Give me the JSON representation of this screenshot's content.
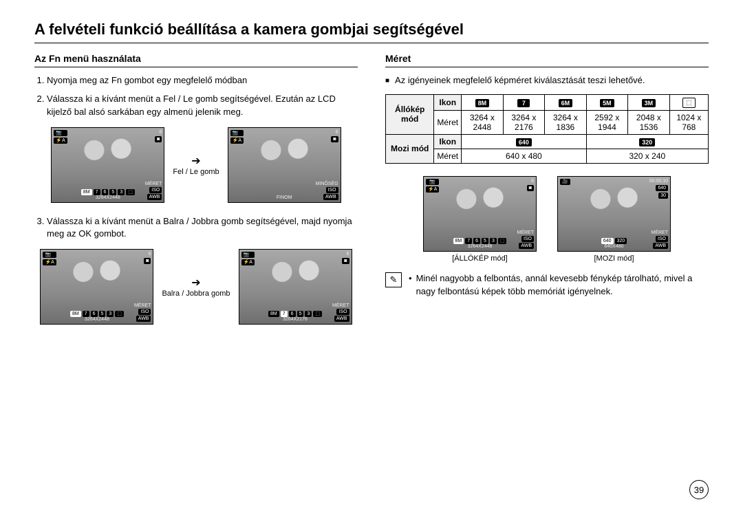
{
  "page_title": "A felvételi funkció beállítása a kamera gombjai segítségével",
  "page_number": "39",
  "left": {
    "header": "Az Fn menü használata",
    "steps": [
      "Nyomja meg az Fn gombot egy megfelelő módban",
      "Válassza ki a kívánt menüt a Fel / Le gomb segítségével. Ezután az LCD kijelző bal alsó sarkában egy almenü jelenik meg.",
      "Válassza ki a kívánt menüt a Balra / Jobbra gomb segítségével, majd nyomja meg az OK gombot."
    ],
    "between1_label": "Fel / Le gomb",
    "between2_label": "Balra / Jobbra gomb",
    "lcd_common": {
      "top_left_icons": [
        "📷",
        "⚡A"
      ],
      "top_right_count": "6",
      "top_right_icon": "◙",
      "bottom_right": [
        "ISO",
        "AUTO",
        "AWB"
      ],
      "bottom_row_chips": [
        "8M",
        "7",
        "6",
        "5",
        "3",
        "⬚"
      ]
    },
    "lcd1": {
      "menu_label": "MÉRET",
      "bottom_value": "3264X2448"
    },
    "lcd2": {
      "menu_label": "MINŐSÉG",
      "bottom_value": "FINOM"
    },
    "lcd3": {
      "menu_label": "MÉRET",
      "bottom_value": "3264X2448"
    },
    "lcd4": {
      "menu_label": "MÉRET",
      "bottom_value": "3264X2176"
    }
  },
  "right": {
    "header": "Méret",
    "intro": "Az igényeinek megfelelő képméret kiválasztását teszi lehetővé.",
    "table": {
      "mode1_label": "Állókép mód",
      "mode2_label": "Mozi mód",
      "icon_label": "Ikon",
      "size_label": "Méret",
      "mode1_icons": [
        "8M",
        "7",
        "6M",
        "5M",
        "3M",
        "⬚"
      ],
      "mode1_sizes": [
        "3264 x 2448",
        "3264 x 2176",
        "3264 x 1836",
        "2592 x 1944",
        "2048 x 1536",
        "1024 x 768"
      ],
      "mode2_icons": [
        "640",
        "320"
      ],
      "mode2_sizes": [
        "640 x 480",
        "320 x 240"
      ]
    },
    "lcd_mode1": {
      "top_right_count": "6",
      "menu_label": "MÉRET",
      "bottom_value": "3264X2448",
      "caption": "[ÁLLÓKÉP mód]"
    },
    "lcd_mode2": {
      "top_right_time": "00:00:10",
      "menu_label": "MÉRET",
      "bottom_chips": [
        "640",
        "320"
      ],
      "bottom_value": "640X480",
      "caption": "[MOZI mód]"
    },
    "note": "Minél nagyobb a felbontás, annál kevesebb fénykép tárolható, mivel a nagy felbontású képek több memóriát igényelnek."
  }
}
